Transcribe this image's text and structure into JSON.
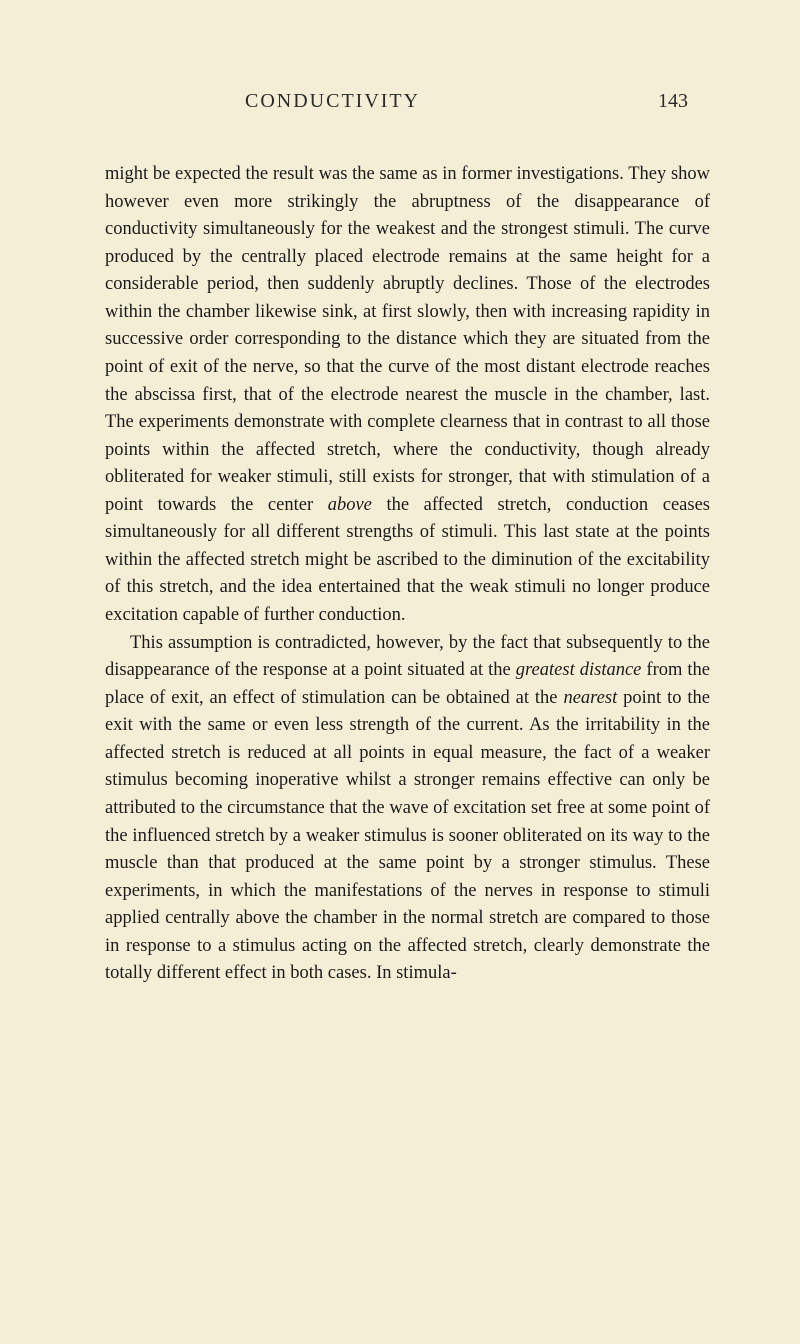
{
  "header": {
    "title": "CONDUCTIVITY",
    "page_number": "143"
  },
  "paragraphs": [
    {
      "indent": false,
      "segments": [
        {
          "text": "might be expected the result was the same as in former investigations. They show however even more strikingly the abruptness of the disappearance of conductivity simultaneously for the weakest and the strongest stimuli. The curve produced by the centrally placed electrode remains at the same height for a considerable period, then suddenly abruptly declines. Those of the electrodes within the chamber likewise sink, at first slowly, then with increasing rapidity in successive order corresponding to the distance which they are situated from the point of exit of the nerve, so that the curve of the most distant electrode reaches the abscissa first, that of the electrode nearest the muscle in the chamber, last. The experiments demonstrate with complete clearness that in contrast to all those points within the affected stretch, where the conductivity, though already obliterated for weaker stimuli, still exists for stronger, that with stimulation of a point towards the center ",
          "italic": false
        },
        {
          "text": "above",
          "italic": true
        },
        {
          "text": " the affected stretch, conduction ceases simultaneously for all different strengths of stimuli. This last state at the points within the affected stretch might be ascribed to the diminution of the excitability of this stretch, and the idea entertained that the weak stimuli no longer produce excitation capable of further conduction.",
          "italic": false
        }
      ]
    },
    {
      "indent": true,
      "segments": [
        {
          "text": "This assumption is contradicted, however, by the fact that subsequently to the disappearance of the response at a point situated at the ",
          "italic": false
        },
        {
          "text": "greatest distance",
          "italic": true
        },
        {
          "text": " from the place of exit, an effect of stimulation can be obtained at the ",
          "italic": false
        },
        {
          "text": "nearest",
          "italic": true
        },
        {
          "text": " point to the exit with the same or even less strength of the current. As the irritability in the affected stretch is reduced at all points in equal measure, the fact of a weaker stimulus becoming inoperative whilst a stronger remains effective can only be attributed to the circumstance that the wave of excitation set free at some point of the influenced stretch by a weaker stimulus is sooner obliterated on its way to the muscle than that produced at the same point by a stronger stimulus. These experiments, in which the manifestations of the nerves in response to stimuli applied centrally above the chamber in the normal stretch are compared to those in response to a stimulus acting on the affected stretch, clearly demonstrate the totally different effect in both cases. In stimula-",
          "italic": false
        }
      ]
    }
  ]
}
